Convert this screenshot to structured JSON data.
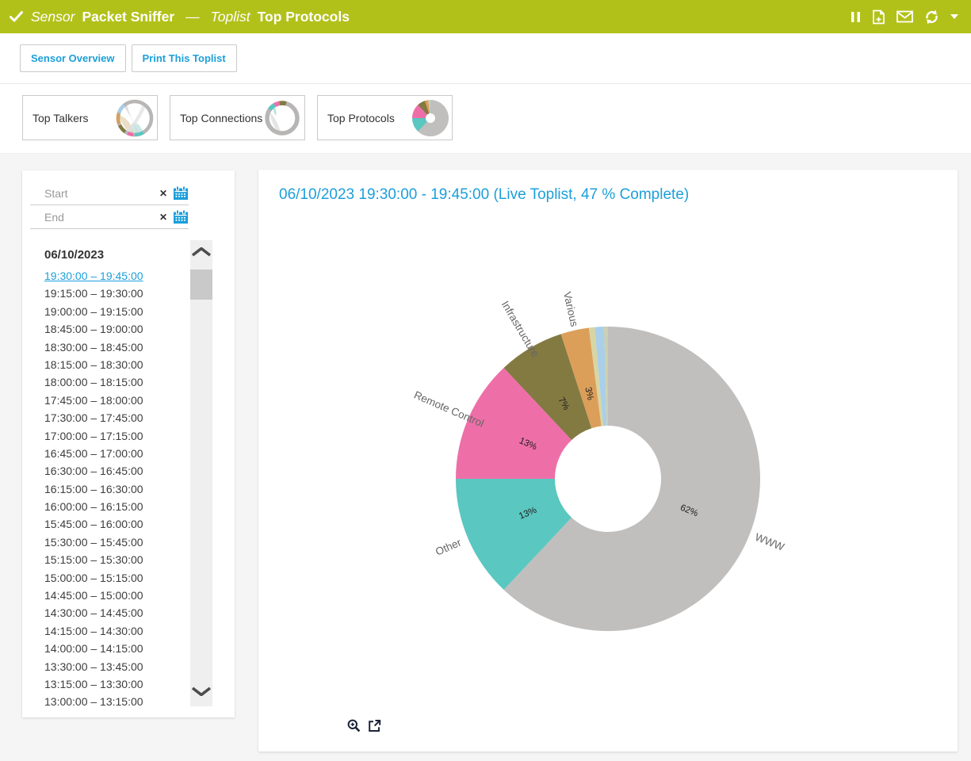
{
  "header": {
    "sensor_label": "Sensor",
    "sensor_name": "Packet Sniffer",
    "separator": "—",
    "toplist_label": "Toplist",
    "toplist_name": "Top Protocols",
    "bg_color": "#b2c119",
    "icons": [
      "pause-icon",
      "report-icon",
      "email-icon",
      "refresh-icon",
      "caret-down-icon"
    ]
  },
  "toolbar": {
    "accent_color": "#1b9fd9",
    "sensor_overview_label": "Sensor Overview",
    "print_toplist_label": "Print This Toplist"
  },
  "tabs": {
    "items": [
      {
        "label": "Top Talkers",
        "icon": "chord-diagram-icon",
        "active": false
      },
      {
        "label": "Top Connections",
        "icon": "connections-ring-icon",
        "active": false
      },
      {
        "label": "Top Protocols",
        "icon": "protocols-pie-icon",
        "active": true
      }
    ]
  },
  "sidebar": {
    "start_placeholder": "Start",
    "end_placeholder": "End",
    "date_header": "06/10/2023",
    "selected_index": 0,
    "intervals": [
      "19:30:00 – 19:45:00",
      "19:15:00 – 19:30:00",
      "19:00:00 – 19:15:00",
      "18:45:00 – 19:00:00",
      "18:30:00 – 18:45:00",
      "18:15:00 – 18:30:00",
      "18:00:00 – 18:15:00",
      "17:45:00 – 18:00:00",
      "17:30:00 – 17:45:00",
      "17:00:00 – 17:15:00",
      "16:45:00 – 17:00:00",
      "16:30:00 – 16:45:00",
      "16:15:00 – 16:30:00",
      "16:00:00 – 16:15:00",
      "15:45:00 – 16:00:00",
      "15:30:00 – 15:45:00",
      "15:15:00 – 15:30:00",
      "15:00:00 – 15:15:00",
      "14:45:00 – 15:00:00",
      "14:30:00 – 14:45:00",
      "14:15:00 – 14:30:00",
      "14:00:00 – 14:15:00",
      "13:30:00 – 13:45:00",
      "13:15:00 – 13:30:00",
      "13:00:00 – 13:15:00"
    ]
  },
  "main": {
    "title": "06/10/2023 19:30:00 - 19:45:00 (Live Toplist, 47 % Complete)",
    "title_color": "#1b9fd9",
    "footer_icons": [
      "zoom-in-icon",
      "open-external-icon"
    ]
  },
  "chart_data": {
    "type": "pie",
    "donut": true,
    "title": "06/10/2023 19:30:00 - 19:45:00 (Live Toplist, 47 % Complete)",
    "start_angle": "12-o-clock",
    "direction": "clockwise",
    "inner_radius_ratio": 0.35,
    "legend_position": "outside-radial-labels",
    "segments": [
      {
        "label": "WWW",
        "value": 62,
        "pct_label": "62%",
        "color": "#c1bebe"
      },
      {
        "label": "Other",
        "value": 13,
        "pct_label": "13%",
        "color": "#5ac7c0"
      },
      {
        "label": "Remote Control",
        "value": 13,
        "pct_label": "13%",
        "color": "#ee6fa8"
      },
      {
        "label": "Infrastructure",
        "value": 7,
        "pct_label": "7%",
        "color": "#837a42"
      },
      {
        "label": "Various",
        "value": 3,
        "pct_label": "3%",
        "color": "#db9f5a"
      },
      {
        "label": "",
        "value": 0.6,
        "pct_label": "",
        "color": "#d8d5a2"
      },
      {
        "label": "",
        "value": 1.0,
        "pct_label": "",
        "color": "#a9cfe9"
      },
      {
        "label": "",
        "value": 0.4,
        "pct_label": "",
        "color": "#cdd0ae"
      }
    ]
  }
}
